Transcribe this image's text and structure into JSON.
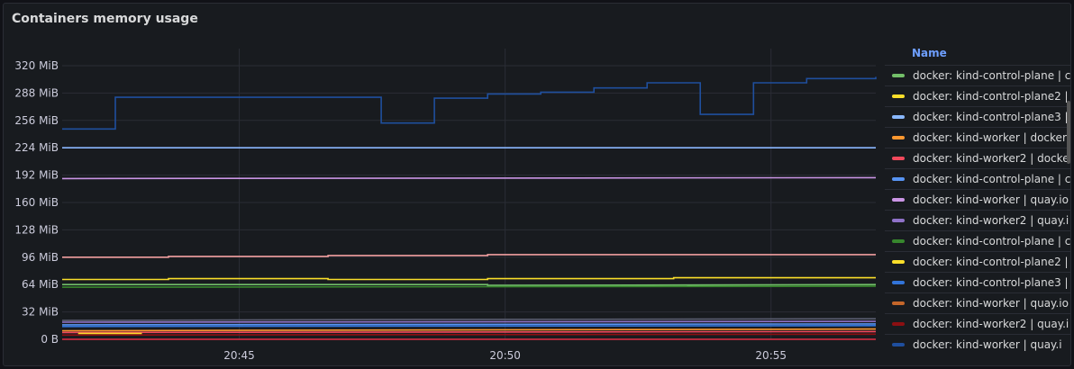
{
  "panel": {
    "title": "Containers memory usage"
  },
  "legend": {
    "header": "Name",
    "items": [
      {
        "label": "docker: kind-control-plane | c",
        "color": "#73bf69"
      },
      {
        "label": "docker: kind-control-plane2 |",
        "color": "#fade2a"
      },
      {
        "label": "docker: kind-control-plane3 |",
        "color": "#8ab8ff"
      },
      {
        "label": "docker: kind-worker | docker.",
        "color": "#ff9830"
      },
      {
        "label": "docker: kind-worker2 | docke",
        "color": "#f2495c"
      },
      {
        "label": "docker: kind-control-plane | c",
        "color": "#5794f2"
      },
      {
        "label": "docker: kind-worker | quay.io",
        "color": "#ca95e5"
      },
      {
        "label": "docker: kind-worker2 | quay.i",
        "color": "#8f72c8"
      },
      {
        "label": "docker: kind-control-plane | c",
        "color": "#37872d"
      },
      {
        "label": "docker: kind-control-plane2 |",
        "color": "#fade2a"
      },
      {
        "label": "docker: kind-control-plane3 |",
        "color": "#3274d9"
      },
      {
        "label": "docker: kind-worker | quay.io",
        "color": "#c4662a"
      },
      {
        "label": "docker: kind-worker2 | quay.i",
        "color": "#8c0f12"
      },
      {
        "label": "docker: kind-worker | quay.i",
        "color": "#1f4f9e"
      }
    ]
  },
  "chart_data": {
    "type": "line",
    "title": "Containers memory usage",
    "xlabel": "",
    "ylabel": "",
    "x_range": [
      "20:41:40",
      "20:57:00"
    ],
    "ylim": [
      0,
      340
    ],
    "y_ticks": [
      "0 B",
      "32 MiB",
      "64 MiB",
      "96 MiB",
      "128 MiB",
      "160 MiB",
      "192 MiB",
      "224 MiB",
      "256 MiB",
      "288 MiB",
      "320 MiB"
    ],
    "y_tick_values": [
      0,
      32,
      64,
      96,
      128,
      160,
      192,
      224,
      256,
      288,
      320
    ],
    "x_ticks": [
      "20:45",
      "20:50",
      "20:55"
    ],
    "x_tick_values": [
      20.75,
      20.8333,
      20.9167
    ],
    "grid": true,
    "series": [
      {
        "color": "#1f4f9e",
        "step": true,
        "points": [
          [
            0,
            246
          ],
          [
            1,
            246
          ],
          [
            1,
            283
          ],
          [
            6,
            283
          ],
          [
            6,
            253
          ],
          [
            7,
            253
          ],
          [
            7,
            282
          ],
          [
            8,
            282
          ],
          [
            8,
            287
          ],
          [
            9,
            287
          ],
          [
            9,
            289
          ],
          [
            10,
            289
          ],
          [
            10,
            294
          ],
          [
            11,
            294
          ],
          [
            11,
            300
          ],
          [
            12,
            300
          ],
          [
            12,
            263
          ],
          [
            13,
            263
          ],
          [
            13,
            300
          ],
          [
            14,
            300
          ],
          [
            14,
            305
          ],
          [
            15.3,
            305
          ],
          [
            15.3,
            307
          ]
        ]
      },
      {
        "color": "#8ab8ff",
        "points": [
          [
            0,
            224
          ],
          [
            15.3,
            224
          ]
        ]
      },
      {
        "color": "#ca95e5",
        "points": [
          [
            0,
            188
          ],
          [
            15.3,
            189
          ]
        ]
      },
      {
        "color": "#f2a0a0",
        "points": [
          [
            0,
            96
          ],
          [
            2,
            96
          ],
          [
            2,
            97
          ],
          [
            5,
            97
          ],
          [
            5,
            98
          ],
          [
            8,
            98
          ],
          [
            8,
            99
          ],
          [
            15.3,
            99
          ]
        ]
      },
      {
        "color": "#fade2a",
        "points": [
          [
            0,
            70
          ],
          [
            2,
            70
          ],
          [
            2,
            71
          ],
          [
            5,
            71
          ],
          [
            5,
            70
          ],
          [
            8,
            70
          ],
          [
            8,
            71
          ],
          [
            11.5,
            71
          ],
          [
            11.5,
            72
          ],
          [
            15.3,
            72
          ]
        ]
      },
      {
        "color": "#73bf69",
        "points": [
          [
            0,
            64
          ],
          [
            8,
            64
          ],
          [
            8,
            63
          ],
          [
            15.3,
            64
          ]
        ]
      },
      {
        "color": "#37872d",
        "points": [
          [
            0,
            61
          ],
          [
            15.3,
            62
          ]
        ]
      },
      {
        "color": "#5b5e72",
        "points": [
          [
            0,
            22
          ],
          [
            6,
            23
          ],
          [
            15.3,
            24
          ]
        ]
      },
      {
        "color": "#8f72c8",
        "points": [
          [
            0,
            20
          ],
          [
            15.3,
            21
          ]
        ]
      },
      {
        "color": "#5794f2",
        "points": [
          [
            0,
            17
          ],
          [
            15.3,
            18
          ]
        ]
      },
      {
        "color": "#3274d9",
        "points": [
          [
            0,
            15
          ],
          [
            15.3,
            16
          ]
        ]
      },
      {
        "color": "#ff9830",
        "points": [
          [
            0,
            10
          ],
          [
            15.3,
            12
          ]
        ]
      },
      {
        "color": "#f2495c",
        "points": [
          [
            0,
            8
          ],
          [
            15.3,
            9
          ]
        ]
      },
      {
        "color": "#8c0f12",
        "points": [
          [
            0,
            5
          ],
          [
            15.3,
            6
          ]
        ]
      },
      {
        "color": "#fade2a",
        "points": [
          [
            0.3,
            7
          ],
          [
            1.5,
            7
          ]
        ]
      },
      {
        "color": "#e02f44",
        "points": [
          [
            0,
            0
          ],
          [
            15.3,
            0
          ]
        ]
      }
    ]
  }
}
